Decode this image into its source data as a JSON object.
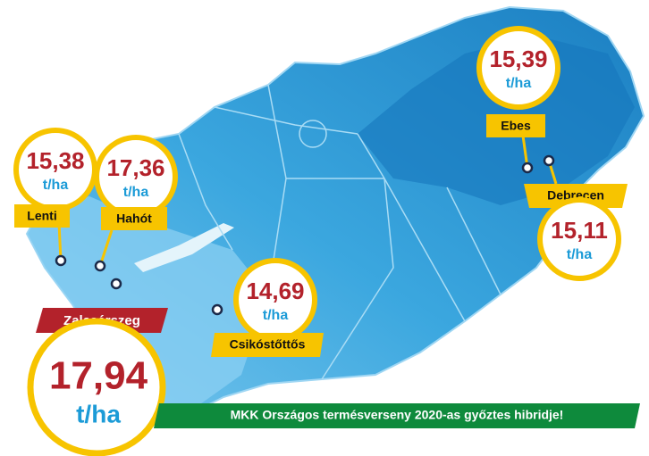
{
  "locations": [
    {
      "name": "Lenti",
      "yield": "15,38",
      "unit": "t/ha"
    },
    {
      "name": "Hahót",
      "yield": "17,36",
      "unit": "t/ha"
    },
    {
      "name": "Zalasárszeg",
      "yield": "17,94",
      "unit": "t/ha"
    },
    {
      "name": "Csikóstőttős",
      "yield": "14,69",
      "unit": "t/ha"
    },
    {
      "name": "Ebes",
      "yield": "15,39",
      "unit": "t/ha"
    },
    {
      "name": "Debrecen",
      "yield": "15,11",
      "unit": "t/ha"
    }
  ],
  "banner": "MKK Országos termésverseny 2020-as győztes hibridje!"
}
